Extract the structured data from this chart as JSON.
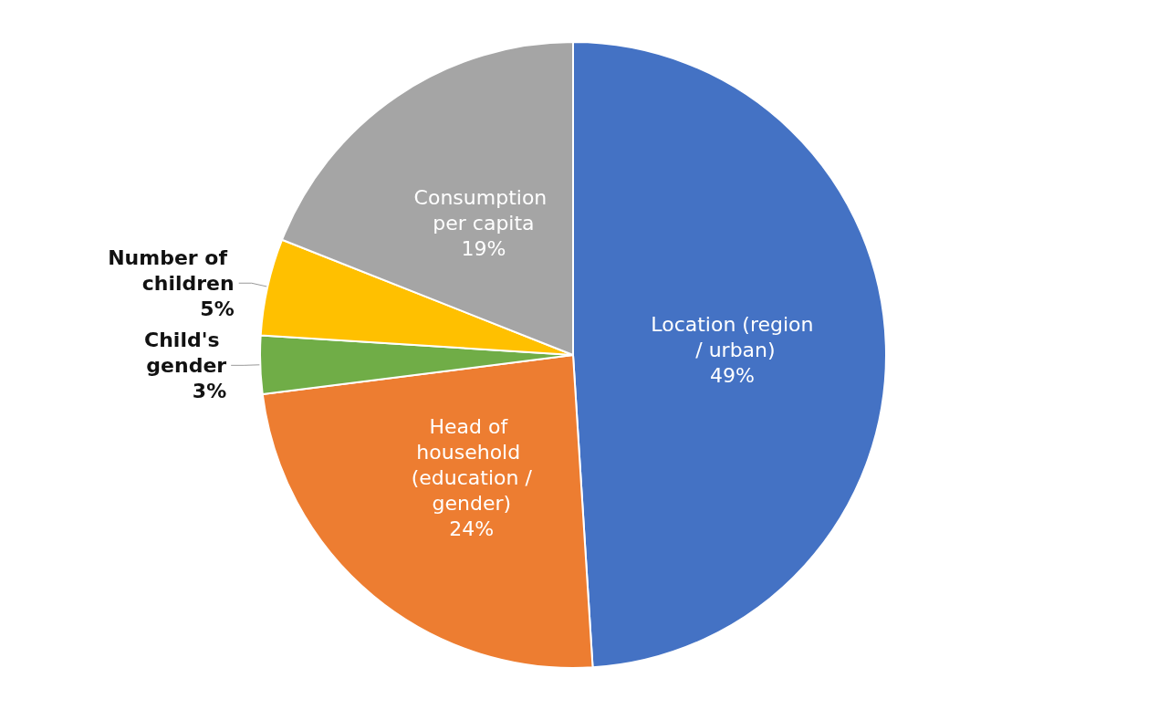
{
  "chart_data": {
    "type": "pie",
    "categories": [
      "Location (region / urban)",
      "Head of household (education /gender)",
      "Child's gender",
      "Number of children",
      "Consumption per capita"
    ],
    "values": [
      49,
      24,
      3,
      5,
      19
    ],
    "colors": [
      "#4472c4",
      "#ed7d31",
      "#70ad47",
      "#ffc000",
      "#a5a5a5"
    ],
    "value_labels": [
      "49%",
      "24%",
      "3%",
      "5%",
      "19%"
    ],
    "legend": false
  }
}
